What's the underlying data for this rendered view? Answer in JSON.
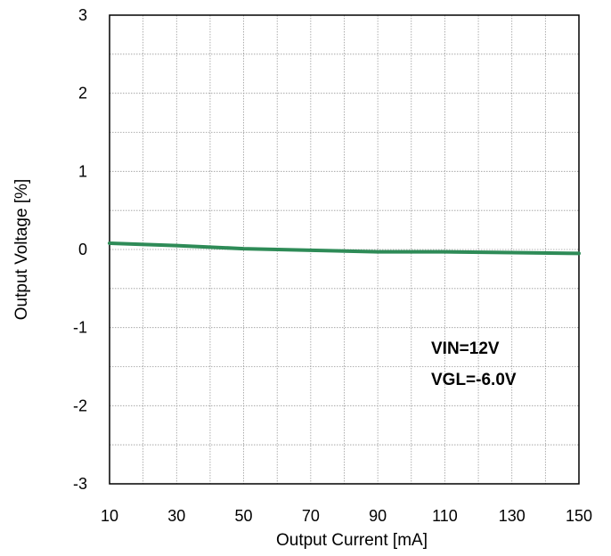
{
  "chart_data": {
    "type": "line",
    "title": "",
    "xlabel": "Output Current [mA]",
    "ylabel": "Output Voltage [%]",
    "xlim": [
      10,
      150
    ],
    "ylim": [
      -3,
      3
    ],
    "x_ticks": [
      "10",
      "30",
      "50",
      "70",
      "90",
      "110",
      "130",
      "150"
    ],
    "y_ticks": [
      "3",
      "2",
      "1",
      "0",
      "-1",
      "-2",
      "-3"
    ],
    "grid": true,
    "annotations": [
      "VIN=12V",
      "VGL=-6.0V"
    ],
    "series": [
      {
        "color": "#2e8b57",
        "x": [
          10,
          30,
          50,
          70,
          90,
          110,
          130,
          150
        ],
        "y": [
          0.08,
          0.05,
          0.01,
          -0.01,
          -0.03,
          -0.03,
          -0.04,
          -0.05
        ]
      }
    ]
  }
}
